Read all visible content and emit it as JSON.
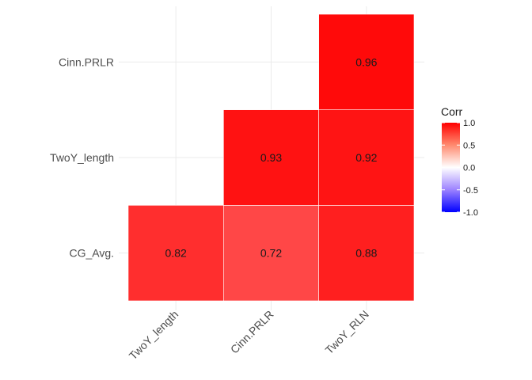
{
  "chart_data": {
    "type": "heatmap",
    "title": "",
    "xlabel": "",
    "ylabel": "",
    "x_categories": [
      "TwoY_length",
      "Cinn.PRLR",
      "TwoY_RLN"
    ],
    "y_categories": [
      "CG_Avg.",
      "TwoY_length",
      "Cinn.PRLR"
    ],
    "cells": [
      {
        "x": "TwoY_length",
        "y": "CG_Avg.",
        "value": 0.82,
        "label": "0.82"
      },
      {
        "x": "Cinn.PRLR",
        "y": "CG_Avg.",
        "value": 0.72,
        "label": "0.72"
      },
      {
        "x": "TwoY_RLN",
        "y": "CG_Avg.",
        "value": 0.88,
        "label": "0.88"
      },
      {
        "x": "Cinn.PRLR",
        "y": "TwoY_length",
        "value": 0.93,
        "label": "0.93"
      },
      {
        "x": "TwoY_RLN",
        "y": "TwoY_length",
        "value": 0.92,
        "label": "0.92"
      },
      {
        "x": "TwoY_RLN",
        "y": "Cinn.PRLR",
        "value": 0.96,
        "label": "0.96"
      }
    ],
    "legend": {
      "title": "Corr",
      "placement": "right",
      "ticks": [
        1.0,
        0.5,
        0.0,
        -0.5,
        -1.0
      ],
      "tick_labels": [
        "1.0",
        "0.5",
        "0.0",
        "-0.5",
        "-1.0"
      ],
      "range": [
        -1,
        1
      ],
      "colors": {
        "low": "#0000ff",
        "mid": "#ffffff",
        "high": "#ff0000"
      }
    },
    "grid": true
  }
}
